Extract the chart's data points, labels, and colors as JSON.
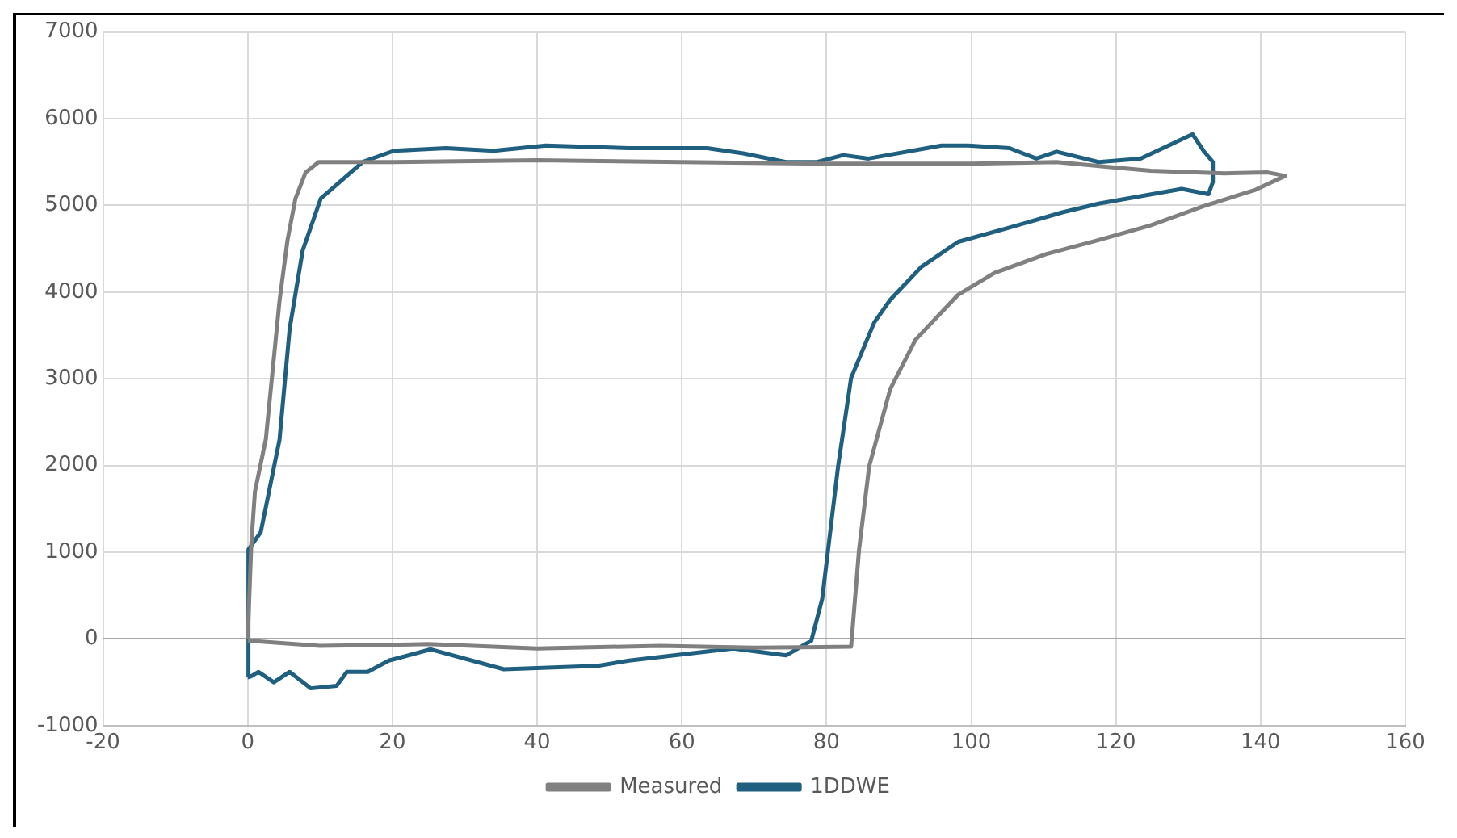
{
  "chart_data": {
    "type": "line",
    "xlim": [
      -20,
      160
    ],
    "xticks": [
      -20,
      0,
      20,
      40,
      60,
      80,
      100,
      120,
      140,
      160
    ],
    "ylim": [
      -1000,
      7000
    ],
    "yticks": [
      -1000,
      0,
      1000,
      2000,
      3000,
      4000,
      5000,
      6000,
      7000
    ],
    "grid": true,
    "legend": "bottom",
    "marker": "none",
    "series": [
      {
        "name": "Measured",
        "color": "#808080",
        "x": [
          0,
          0.5,
          1,
          2.5,
          4.4,
          5.5,
          6.6,
          8,
          9.8,
          20,
          40,
          60,
          80,
          100,
          111.8,
          118,
          124.8,
          135,
          141,
          143.4,
          139.3,
          132.1,
          124.8,
          117.6,
          110.4,
          103.2,
          98.2,
          92.3,
          88.8,
          85.9,
          84.5,
          83.4,
          70,
          57,
          40,
          25,
          10,
          0
        ],
        "values": [
          0,
          1100,
          1700,
          2300,
          3900,
          4600,
          5080,
          5380,
          5500,
          5500,
          5520,
          5500,
          5480,
          5480,
          5500,
          5450,
          5400,
          5370,
          5380,
          5340,
          5180,
          4990,
          4770,
          4600,
          4440,
          4220,
          3970,
          3450,
          2880,
          1990,
          1030,
          -90,
          -100,
          -80,
          -110,
          -60,
          -80,
          -20
        ]
      },
      {
        "name": "1DDWE",
        "color": "#1f5f7f",
        "x": [
          0,
          0.1,
          1.8,
          4.4,
          5.8,
          7.6,
          10.1,
          15.9,
          20.2,
          27.4,
          34,
          41.2,
          52.7,
          63.5,
          68.5,
          74.4,
          78.7,
          82.3,
          85.8,
          95.9,
          99.6,
          105.3,
          109,
          111.8,
          117.6,
          123.4,
          130.6,
          132.1,
          133.4,
          133.4,
          132.8,
          129.1,
          117.6,
          112.6,
          104.7,
          98.2,
          93.1,
          88.8,
          86.6,
          83.4,
          81.6,
          79.4,
          77.9,
          74.4,
          67.1,
          52.7,
          48.4,
          35.4,
          25.3,
          19.5,
          16.6,
          13.7,
          12.3,
          8.7,
          5.8,
          3.6,
          1.5,
          0.3
        ],
        "values": [
          -440,
          1030,
          1230,
          2300,
          3580,
          4480,
          5080,
          5500,
          5630,
          5660,
          5630,
          5690,
          5660,
          5660,
          5600,
          5500,
          5500,
          5580,
          5540,
          5690,
          5690,
          5660,
          5540,
          5620,
          5500,
          5540,
          5820,
          5630,
          5500,
          5270,
          5130,
          5190,
          5020,
          4920,
          4730,
          4580,
          4290,
          3910,
          3650,
          3010,
          1990,
          460,
          -20,
          -190,
          -110,
          -250,
          -310,
          -350,
          -120,
          -250,
          -380,
          -380,
          -540,
          -570,
          -380,
          -500,
          -380,
          -440
        ]
      }
    ]
  }
}
